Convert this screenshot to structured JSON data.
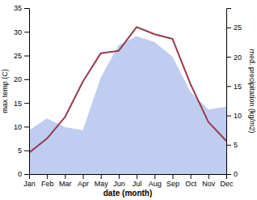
{
  "chart_data": {
    "type": "line",
    "x": [
      1,
      2,
      3,
      4,
      5,
      6,
      7,
      8,
      9,
      10,
      11,
      12
    ],
    "xlabel": "date (month)",
    "ylabel": "max temp (C)",
    "y2label": "med. precipitation (kg/m2)",
    "xlim": [
      1,
      12
    ],
    "xticks": [
      {
        "value": 1,
        "label": "Jan"
      },
      {
        "value": 2,
        "label": "Feb"
      },
      {
        "value": 3,
        "label": "Mar"
      },
      {
        "value": 4,
        "label": "Apr"
      },
      {
        "value": 5,
        "label": "May"
      },
      {
        "value": 6,
        "label": "Jun"
      },
      {
        "value": 7,
        "label": "Jul"
      },
      {
        "value": 8,
        "label": "Aug"
      },
      {
        "value": 9,
        "label": "Sep"
      },
      {
        "value": 10,
        "label": "Oct"
      },
      {
        "value": 11,
        "label": "Nov"
      },
      {
        "value": 12,
        "label": "Dec"
      }
    ],
    "ylim": [
      0,
      35
    ],
    "yticks": [
      0,
      5,
      10,
      15,
      20,
      25,
      30,
      35
    ],
    "y2lim": [
      0,
      28.3
    ],
    "y2ticks": [
      0,
      5,
      10,
      15,
      20,
      25
    ],
    "grid": false,
    "series": [
      {
        "type": "area",
        "axis": "y2",
        "color": "#b8c8ee",
        "values": [
          7.5,
          9.5,
          8.0,
          7.5,
          16.5,
          22.0,
          23.5,
          22.5,
          20.0,
          14.0,
          11.0,
          11.5
        ]
      },
      {
        "type": "line",
        "color": "#9b3a4a",
        "values": [
          4.5,
          7.5,
          12.0,
          19.5,
          25.5,
          26.0,
          31.0,
          29.5,
          28.5,
          19.0,
          11.0,
          7.0
        ]
      }
    ]
  }
}
